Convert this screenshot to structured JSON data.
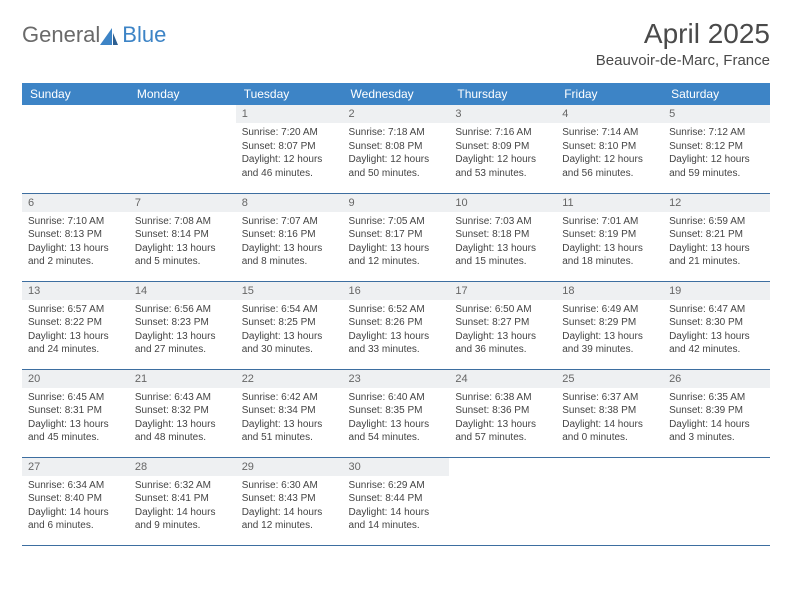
{
  "brand": {
    "part1": "General",
    "part2": "Blue"
  },
  "title": "April 2025",
  "location": "Beauvoir-de-Marc, France",
  "colors": {
    "header_bg": "#3d84c6",
    "header_text": "#ffffff",
    "daynum_bg": "#eef0f2",
    "row_border": "#3d6ea0",
    "logo_gray": "#6a6a6a",
    "logo_blue": "#3d84c6"
  },
  "weekdays": [
    "Sunday",
    "Monday",
    "Tuesday",
    "Wednesday",
    "Thursday",
    "Friday",
    "Saturday"
  ],
  "calendar": {
    "first_weekday_index": 2,
    "days": [
      {
        "n": 1,
        "sunrise": "7:20 AM",
        "sunset": "8:07 PM",
        "daylight": "12 hours and 46 minutes."
      },
      {
        "n": 2,
        "sunrise": "7:18 AM",
        "sunset": "8:08 PM",
        "daylight": "12 hours and 50 minutes."
      },
      {
        "n": 3,
        "sunrise": "7:16 AM",
        "sunset": "8:09 PM",
        "daylight": "12 hours and 53 minutes."
      },
      {
        "n": 4,
        "sunrise": "7:14 AM",
        "sunset": "8:10 PM",
        "daylight": "12 hours and 56 minutes."
      },
      {
        "n": 5,
        "sunrise": "7:12 AM",
        "sunset": "8:12 PM",
        "daylight": "12 hours and 59 minutes."
      },
      {
        "n": 6,
        "sunrise": "7:10 AM",
        "sunset": "8:13 PM",
        "daylight": "13 hours and 2 minutes."
      },
      {
        "n": 7,
        "sunrise": "7:08 AM",
        "sunset": "8:14 PM",
        "daylight": "13 hours and 5 minutes."
      },
      {
        "n": 8,
        "sunrise": "7:07 AM",
        "sunset": "8:16 PM",
        "daylight": "13 hours and 8 minutes."
      },
      {
        "n": 9,
        "sunrise": "7:05 AM",
        "sunset": "8:17 PM",
        "daylight": "13 hours and 12 minutes."
      },
      {
        "n": 10,
        "sunrise": "7:03 AM",
        "sunset": "8:18 PM",
        "daylight": "13 hours and 15 minutes."
      },
      {
        "n": 11,
        "sunrise": "7:01 AM",
        "sunset": "8:19 PM",
        "daylight": "13 hours and 18 minutes."
      },
      {
        "n": 12,
        "sunrise": "6:59 AM",
        "sunset": "8:21 PM",
        "daylight": "13 hours and 21 minutes."
      },
      {
        "n": 13,
        "sunrise": "6:57 AM",
        "sunset": "8:22 PM",
        "daylight": "13 hours and 24 minutes."
      },
      {
        "n": 14,
        "sunrise": "6:56 AM",
        "sunset": "8:23 PM",
        "daylight": "13 hours and 27 minutes."
      },
      {
        "n": 15,
        "sunrise": "6:54 AM",
        "sunset": "8:25 PM",
        "daylight": "13 hours and 30 minutes."
      },
      {
        "n": 16,
        "sunrise": "6:52 AM",
        "sunset": "8:26 PM",
        "daylight": "13 hours and 33 minutes."
      },
      {
        "n": 17,
        "sunrise": "6:50 AM",
        "sunset": "8:27 PM",
        "daylight": "13 hours and 36 minutes."
      },
      {
        "n": 18,
        "sunrise": "6:49 AM",
        "sunset": "8:29 PM",
        "daylight": "13 hours and 39 minutes."
      },
      {
        "n": 19,
        "sunrise": "6:47 AM",
        "sunset": "8:30 PM",
        "daylight": "13 hours and 42 minutes."
      },
      {
        "n": 20,
        "sunrise": "6:45 AM",
        "sunset": "8:31 PM",
        "daylight": "13 hours and 45 minutes."
      },
      {
        "n": 21,
        "sunrise": "6:43 AM",
        "sunset": "8:32 PM",
        "daylight": "13 hours and 48 minutes."
      },
      {
        "n": 22,
        "sunrise": "6:42 AM",
        "sunset": "8:34 PM",
        "daylight": "13 hours and 51 minutes."
      },
      {
        "n": 23,
        "sunrise": "6:40 AM",
        "sunset": "8:35 PM",
        "daylight": "13 hours and 54 minutes."
      },
      {
        "n": 24,
        "sunrise": "6:38 AM",
        "sunset": "8:36 PM",
        "daylight": "13 hours and 57 minutes."
      },
      {
        "n": 25,
        "sunrise": "6:37 AM",
        "sunset": "8:38 PM",
        "daylight": "14 hours and 0 minutes."
      },
      {
        "n": 26,
        "sunrise": "6:35 AM",
        "sunset": "8:39 PM",
        "daylight": "14 hours and 3 minutes."
      },
      {
        "n": 27,
        "sunrise": "6:34 AM",
        "sunset": "8:40 PM",
        "daylight": "14 hours and 6 minutes."
      },
      {
        "n": 28,
        "sunrise": "6:32 AM",
        "sunset": "8:41 PM",
        "daylight": "14 hours and 9 minutes."
      },
      {
        "n": 29,
        "sunrise": "6:30 AM",
        "sunset": "8:43 PM",
        "daylight": "14 hours and 12 minutes."
      },
      {
        "n": 30,
        "sunrise": "6:29 AM",
        "sunset": "8:44 PM",
        "daylight": "14 hours and 14 minutes."
      }
    ]
  },
  "labels": {
    "sunrise": "Sunrise:",
    "sunset": "Sunset:",
    "daylight": "Daylight:"
  }
}
